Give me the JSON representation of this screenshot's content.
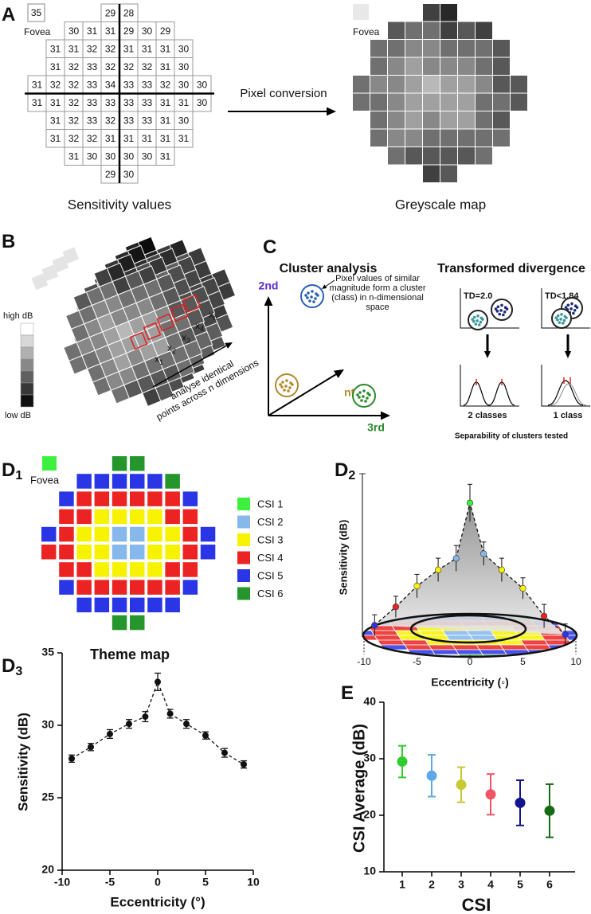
{
  "panel_a": {
    "label": "A",
    "fovea_value": 35,
    "fovea_label": "Fovea",
    "rows": [
      [
        null,
        null,
        null,
        null,
        29,
        28,
        null,
        null,
        null,
        null
      ],
      [
        null,
        null,
        30,
        31,
        31,
        29,
        30,
        29,
        null,
        null
      ],
      [
        null,
        31,
        31,
        32,
        32,
        31,
        31,
        31,
        30,
        null
      ],
      [
        null,
        31,
        32,
        33,
        32,
        32,
        32,
        31,
        30,
        null
      ],
      [
        31,
        32,
        32,
        33,
        34,
        33,
        33,
        32,
        30,
        30
      ],
      [
        31,
        31,
        32,
        33,
        33,
        33,
        33,
        31,
        31,
        30
      ],
      [
        null,
        31,
        32,
        33,
        32,
        33,
        33,
        31,
        30,
        null
      ],
      [
        null,
        31,
        32,
        32,
        31,
        31,
        31,
        31,
        31,
        null
      ],
      [
        null,
        null,
        31,
        30,
        30,
        30,
        30,
        31,
        null,
        null
      ],
      [
        null,
        null,
        null,
        null,
        29,
        30,
        null,
        null,
        null,
        null
      ]
    ],
    "caption_left": "Sensitivity values",
    "arrow_label": "Pixel conversion",
    "caption_right": "Greyscale map"
  },
  "panel_b": {
    "label": "B",
    "legend_high": "high dB",
    "legend_low": "low dB",
    "point_symbol": "x",
    "point_subscripts": [
      "1",
      "2",
      "3",
      "4",
      "n"
    ],
    "arrow_text": [
      "analyse identical",
      "points across n dimensions"
    ]
  },
  "panel_c": {
    "label": "C",
    "title_left": "Cluster analysis",
    "title_right": "Transformed divergence",
    "axes": [
      "2nd",
      "nth",
      "3rd"
    ],
    "cluster_note": [
      "Pixel values of similar",
      "magnitude form a cluster",
      "(class) in n-dimensional",
      "space"
    ],
    "tests": [
      {
        "label": "TD=2.0",
        "result": "2 classes"
      },
      {
        "label": "TD<1.84",
        "result": "1 class"
      }
    ],
    "footer": "Separability of clusters tested"
  },
  "panel_d1": {
    "label": "D",
    "sub": "1",
    "fovea_label": "Fovea",
    "fovea_class": 1,
    "classes": [
      [
        null,
        null,
        null,
        null,
        6,
        6,
        null,
        null,
        null,
        null
      ],
      [
        null,
        null,
        5,
        5,
        5,
        5,
        5,
        6,
        null,
        null
      ],
      [
        null,
        5,
        4,
        4,
        4,
        4,
        4,
        4,
        5,
        null
      ],
      [
        null,
        4,
        4,
        3,
        3,
        3,
        3,
        4,
        4,
        null
      ],
      [
        5,
        4,
        3,
        3,
        2,
        2,
        3,
        3,
        4,
        5
      ],
      [
        4,
        4,
        3,
        3,
        2,
        2,
        3,
        3,
        4,
        5
      ],
      [
        null,
        4,
        4,
        3,
        3,
        3,
        3,
        4,
        4,
        null
      ],
      [
        null,
        5,
        4,
        4,
        4,
        4,
        4,
        4,
        5,
        null
      ],
      [
        null,
        null,
        5,
        5,
        5,
        5,
        5,
        5,
        null,
        null
      ],
      [
        null,
        null,
        null,
        null,
        6,
        6,
        null,
        null,
        null,
        null
      ]
    ],
    "legend": [
      {
        "name": "CSI 1",
        "color": "#3df03d"
      },
      {
        "name": "CSI 2",
        "color": "#86b8ec"
      },
      {
        "name": "CSI 3",
        "color": "#f7f200"
      },
      {
        "name": "CSI 4",
        "color": "#ec2323"
      },
      {
        "name": "CSI 5",
        "color": "#2a36e6"
      },
      {
        "name": "CSI 6",
        "color": "#25962c"
      }
    ],
    "caption": "Theme map"
  },
  "panel_d2": {
    "label": "D",
    "sub": "2",
    "ylabel": "Sensitivity (dB)",
    "xlabel": "Eccentricity (◦)",
    "xlim": [
      -10,
      10
    ],
    "xticks": [
      -10,
      -5,
      0,
      5,
      10
    ],
    "point_classes": [
      5,
      4,
      3,
      3,
      2,
      1,
      2,
      3,
      3,
      4,
      5
    ]
  },
  "chart_data": [
    {
      "type": "line",
      "label": "D",
      "label_sub": "3",
      "x": [
        -9,
        -7,
        -5,
        -3,
        -1.3,
        0,
        1.3,
        3,
        5,
        7,
        9
      ],
      "values": [
        27.7,
        28.5,
        29.4,
        30.1,
        30.6,
        33.0,
        30.8,
        30.1,
        29.3,
        28.1,
        27.3
      ],
      "errors": [
        0.25,
        0.25,
        0.3,
        0.3,
        0.35,
        0.6,
        0.3,
        0.3,
        0.25,
        0.3,
        0.25
      ],
      "color": "#111111",
      "line_style": "dashed",
      "xlim": [
        -10,
        10
      ],
      "xticks": [
        -10,
        -5,
        0,
        5,
        10
      ],
      "ylim": [
        20,
        35
      ],
      "yticks": [
        20,
        25,
        30,
        35
      ],
      "xlabel": "Eccentricity (°)",
      "ylabel": "Sensitivity (dB)"
    },
    {
      "type": "dot",
      "label": "E",
      "categories": [
        "1",
        "2",
        "3",
        "4",
        "5",
        "6"
      ],
      "values": [
        29.5,
        27.0,
        25.4,
        23.7,
        22.2,
        20.8
      ],
      "errors": [
        2.8,
        3.7,
        3.1,
        3.6,
        4.0,
        4.7
      ],
      "colors": [
        "#2ecc2e",
        "#5fa8e8",
        "#c8c832",
        "#ee5566",
        "#14148c",
        "#156b15"
      ],
      "ylim": [
        10,
        40
      ],
      "yticks": [
        10,
        20,
        30,
        40
      ],
      "xlabel": "CSI",
      "ylabel": "CSI Average (dB)"
    }
  ]
}
